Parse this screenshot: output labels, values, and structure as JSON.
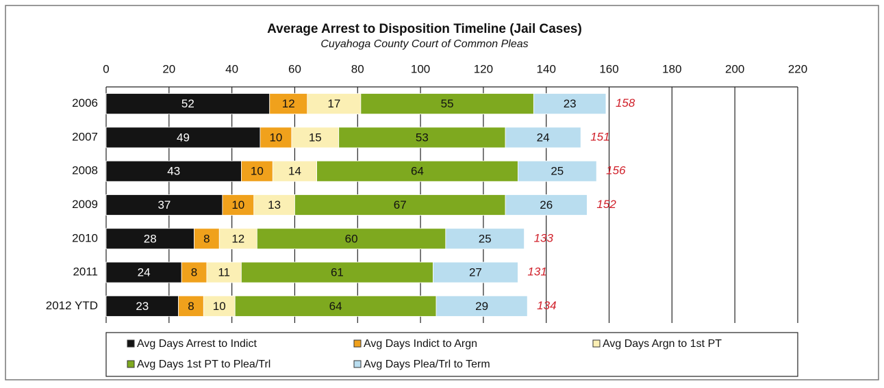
{
  "chart_data": {
    "type": "stacked-bar-horizontal",
    "title": "Average Arrest to Disposition Timeline (Jail Cases)",
    "subtitle": "Cuyahoga County Court of Common Pleas",
    "categories": [
      "2006",
      "2007",
      "2008",
      "2009",
      "2010",
      "2011",
      "2012 YTD"
    ],
    "series": [
      {
        "name": "Avg Days Arrest to Indict",
        "color": "#141414",
        "values": [
          52,
          49,
          43,
          37,
          28,
          24,
          23
        ]
      },
      {
        "name": "Avg Days Indict to Argn",
        "color": "#f0a11c",
        "values": [
          12,
          10,
          10,
          10,
          8,
          8,
          8
        ]
      },
      {
        "name": "Avg Days Argn to 1st PT",
        "color": "#fbefb4",
        "values": [
          17,
          15,
          14,
          13,
          12,
          11,
          10
        ]
      },
      {
        "name": "Avg Days 1st PT to Plea/Trl",
        "color": "#7ea91f",
        "values": [
          55,
          53,
          64,
          67,
          60,
          61,
          64
        ]
      },
      {
        "name": "Avg Days Plea/Trl to Term",
        "color": "#b9ddef",
        "values": [
          23,
          24,
          25,
          26,
          25,
          27,
          29
        ]
      }
    ],
    "totals": [
      158,
      151,
      156,
      152,
      133,
      131,
      134
    ],
    "xlim": [
      0,
      220
    ],
    "xticks": [
      0,
      20,
      40,
      60,
      80,
      100,
      120,
      140,
      160,
      180,
      200,
      220
    ],
    "grid": true,
    "legend": "bottom"
  }
}
